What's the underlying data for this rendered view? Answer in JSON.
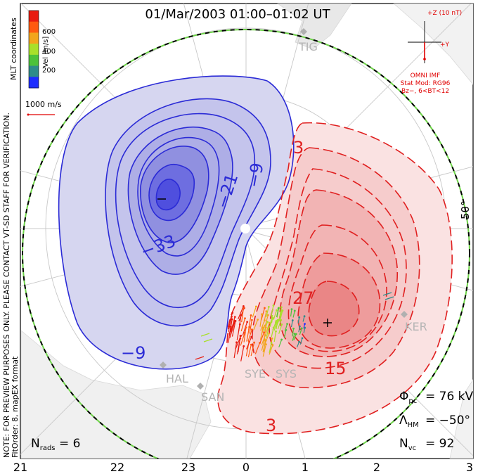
{
  "title": "01/Mar/2003 01:00–01:02 UT",
  "color_scale": {
    "label": "Vel [m/s]",
    "ticks": [
      "200",
      "400",
      "600"
    ],
    "colors": [
      "#1e2dff",
      "#2e8c8a",
      "#4cc23a",
      "#a8e02a",
      "#f2a51c",
      "#ff5a10",
      "#e81c10"
    ]
  },
  "side_notes": {
    "coords": "MLT coordinates",
    "preview": "NOTE: FOR PREVIEW PURPOSES ONLY. PLEASE CONTACT VT-SD STAFF FOR VERIFICATION.",
    "fit": "FitOrder: 8, mapEX format"
  },
  "vector_scale_label": "1000 m/s",
  "imf": {
    "z_label": "+Z (10 nT)",
    "y_label": "+Y",
    "source": "OMNI IMF",
    "model": "Stat Mod: RG96",
    "condition": "Bz−, 6<BT<12"
  },
  "stations": [
    "TIG",
    "KER",
    "HAL",
    "SAN",
    "SYE",
    "SYS"
  ],
  "contour_labels": {
    "negative": [
      "−9",
      "−21",
      "−33",
      "−9"
    ],
    "positive": [
      "3",
      "27",
      "15",
      "3"
    ]
  },
  "latitude_label": "50°",
  "stats": {
    "phi_pc_label": "Φ",
    "phi_pc_sub": "pc",
    "phi_pc_value": "= 76 kV",
    "lambda_label": "Λ",
    "lambda_sub": "HM",
    "lambda_value": "= −50°",
    "nvc_label": "N",
    "nvc_sub": "vc",
    "nvc_value": "= 92",
    "nrads_label": "N",
    "nrads_sub": "rads",
    "nrads_value": "= 6"
  },
  "mlt_axis": [
    "21",
    "22",
    "23",
    "0",
    "1",
    "2",
    "3"
  ],
  "colors": {
    "negative": "#2b2bd6",
    "positive": "#e02020",
    "imf": "#e00000",
    "grid": "#c8c8c8",
    "boundary": "#6fd44a"
  }
}
